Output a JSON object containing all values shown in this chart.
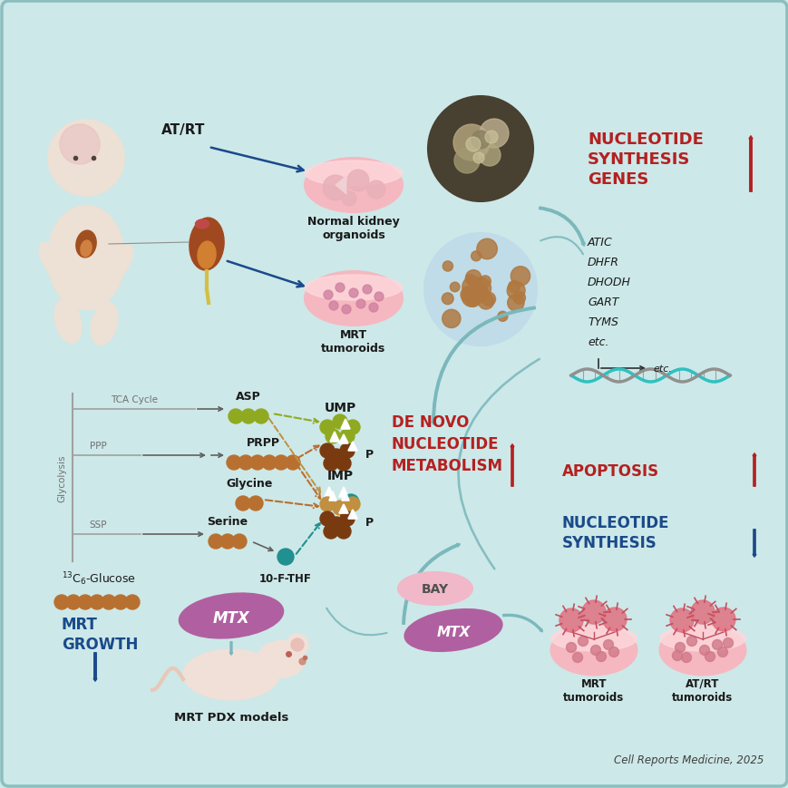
{
  "bg_color": "#cde8e8",
  "border_color": "#8bbfbf",
  "red_color": "#b52020",
  "blue_color": "#1a4a8a",
  "teal_arrow": "#7ab8bc",
  "dark_text": "#1a1a1a",
  "gray_text": "#707070",
  "olive_dot": "#8faa20",
  "brown_dot": "#b87030",
  "dark_brown_dot": "#7a3a10",
  "teal_dot": "#209090",
  "pill_mtx": "#b060a0",
  "pill_bay": "#e8a8b8",
  "pink_dish": "#f5b8c0",
  "pink_dish_inner": "#fdd8dc",
  "citation": "Cell Reports Medicine, 2025",
  "genes": [
    "ATIC",
    "DHFR",
    "DHODH",
    "GART",
    "TYMS",
    "etc."
  ]
}
